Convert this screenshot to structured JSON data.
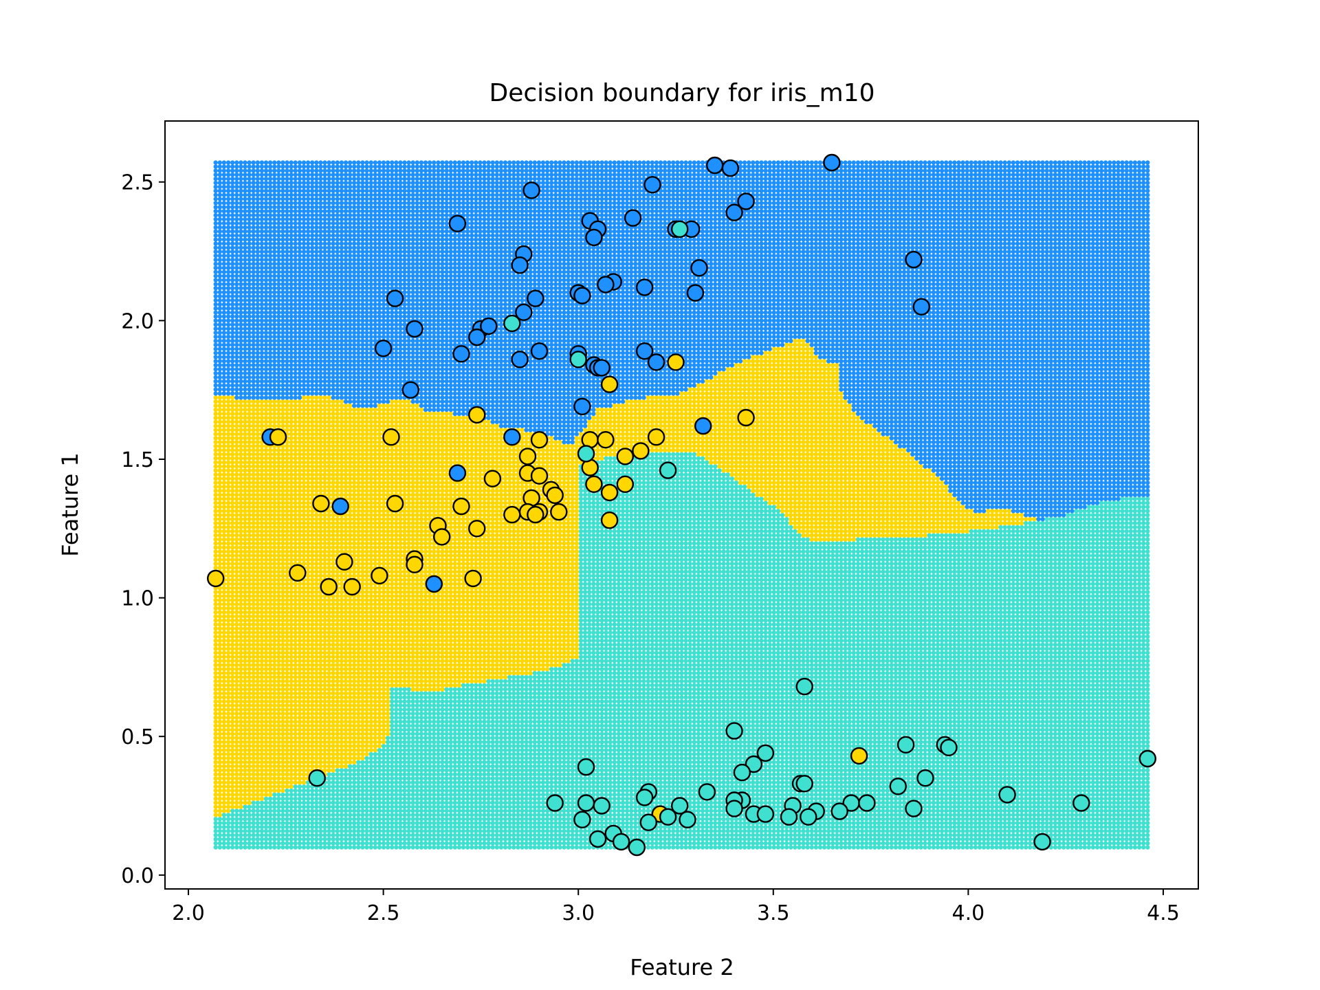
{
  "chart_data": {
    "type": "scatter",
    "title": "Decision boundary for iris_m10",
    "xlabel": "Feature 2",
    "ylabel": "Feature 1",
    "xlim": [
      1.94,
      4.59
    ],
    "ylim": [
      -0.05,
      2.72
    ],
    "xticks": [
      2.0,
      2.5,
      3.0,
      3.5,
      4.0,
      4.5
    ],
    "yticks": [
      0.0,
      0.5,
      1.0,
      1.5,
      2.0,
      2.5
    ],
    "xtick_labels": [
      "2.0",
      "2.5",
      "3.0",
      "3.5",
      "4.0",
      "4.5"
    ],
    "ytick_labels": [
      "0.0",
      "0.5",
      "1.0",
      "1.5",
      "2.0",
      "2.5"
    ],
    "grid": false,
    "legend": "none",
    "class_colors": {
      "blue": "#1e90ff",
      "yellow": "#ffd700",
      "teal": "#40e0d0"
    },
    "decision_region_grid": {
      "x_range": [
        2.07,
        4.46
      ],
      "y_range": [
        0.1,
        2.57
      ]
    },
    "decision_boundaries": {
      "teal_upper_edge": [
        [
          2.07,
          0.21
        ],
        [
          2.2,
          0.28
        ],
        [
          2.35,
          0.36
        ],
        [
          2.45,
          0.42
        ],
        [
          2.51,
          0.48
        ],
        [
          2.52,
          0.68
        ],
        [
          2.62,
          0.66
        ],
        [
          2.72,
          0.69
        ],
        [
          2.85,
          0.72
        ],
        [
          2.95,
          0.75
        ],
        [
          3.05,
          0.83
        ],
        [
          3.15,
          0.88
        ],
        [
          3.3,
          0.93
        ],
        [
          3.4,
          1.0
        ],
        [
          3.45,
          1.08
        ],
        [
          3.5,
          1.14
        ],
        [
          3.56,
          1.18
        ],
        [
          3.6,
          1.2
        ],
        [
          3.7,
          1.21
        ],
        [
          3.82,
          1.22
        ],
        [
          3.95,
          1.23
        ],
        [
          4.05,
          1.25
        ],
        [
          4.15,
          1.27
        ],
        [
          4.25,
          1.3
        ],
        [
          4.35,
          1.35
        ],
        [
          4.46,
          1.37
        ]
      ],
      "teal_wedge_top": [
        [
          3.0,
          1.48
        ],
        [
          3.15,
          1.53
        ],
        [
          3.3,
          1.52
        ],
        [
          3.38,
          1.45
        ],
        [
          3.45,
          1.38
        ],
        [
          3.52,
          1.31
        ],
        [
          3.57,
          1.22
        ],
        [
          3.6,
          1.21
        ]
      ],
      "yellow_upper_edge": [
        [
          2.07,
          1.73
        ],
        [
          2.2,
          1.71
        ],
        [
          2.35,
          1.73
        ],
        [
          2.45,
          1.68
        ],
        [
          2.55,
          1.72
        ],
        [
          2.62,
          1.67
        ],
        [
          2.72,
          1.66
        ],
        [
          2.82,
          1.61
        ],
        [
          2.9,
          1.6
        ],
        [
          2.98,
          1.55
        ],
        [
          3.05,
          1.68
        ],
        [
          3.15,
          1.72
        ],
        [
          3.25,
          1.73
        ],
        [
          3.3,
          1.76
        ],
        [
          3.38,
          1.83
        ],
        [
          3.5,
          1.9
        ],
        [
          3.58,
          1.94
        ],
        [
          3.62,
          1.86
        ],
        [
          3.67,
          1.84
        ],
        [
          3.67,
          1.75
        ],
        [
          3.72,
          1.65
        ],
        [
          3.82,
          1.55
        ],
        [
          3.92,
          1.44
        ],
        [
          3.98,
          1.34
        ],
        [
          4.02,
          1.31
        ],
        [
          4.1,
          1.32
        ],
        [
          4.2,
          1.27
        ],
        [
          4.3,
          1.27
        ],
        [
          4.46,
          1.37
        ]
      ]
    },
    "series": [
      {
        "class": "blue",
        "points": [
          [
            3.65,
            2.57
          ],
          [
            3.35,
            2.56
          ],
          [
            3.39,
            2.55
          ],
          [
            2.88,
            2.47
          ],
          [
            3.19,
            2.49
          ],
          [
            3.43,
            2.43
          ],
          [
            3.4,
            2.39
          ],
          [
            2.69,
            2.35
          ],
          [
            3.03,
            2.36
          ],
          [
            3.14,
            2.37
          ],
          [
            3.05,
            2.33
          ],
          [
            3.25,
            2.33
          ],
          [
            3.29,
            2.33
          ],
          [
            3.04,
            2.3
          ],
          [
            2.86,
            2.24
          ],
          [
            2.85,
            2.2
          ],
          [
            3.31,
            2.19
          ],
          [
            3.86,
            2.22
          ],
          [
            3.09,
            2.14
          ],
          [
            3.07,
            2.13
          ],
          [
            3.17,
            2.12
          ],
          [
            3.0,
            2.1
          ],
          [
            3.01,
            2.09
          ],
          [
            3.3,
            2.1
          ],
          [
            2.53,
            2.08
          ],
          [
            2.89,
            2.08
          ],
          [
            2.86,
            2.03
          ],
          [
            3.88,
            2.05
          ],
          [
            2.58,
            1.97
          ],
          [
            2.75,
            1.97
          ],
          [
            2.77,
            1.98
          ],
          [
            2.74,
            1.94
          ],
          [
            2.5,
            1.9
          ],
          [
            2.7,
            1.88
          ],
          [
            2.9,
            1.89
          ],
          [
            3.17,
            1.89
          ],
          [
            2.85,
            1.86
          ],
          [
            3.0,
            1.88
          ],
          [
            3.04,
            1.84
          ],
          [
            3.05,
            1.83
          ],
          [
            3.06,
            1.83
          ],
          [
            3.2,
            1.85
          ],
          [
            2.57,
            1.75
          ],
          [
            3.01,
            1.69
          ],
          [
            3.32,
            1.62
          ],
          [
            2.21,
            1.58
          ],
          [
            2.83,
            1.58
          ],
          [
            2.69,
            1.45
          ],
          [
            2.39,
            1.33
          ],
          [
            2.63,
            1.05
          ]
        ]
      },
      {
        "class": "yellow",
        "points": [
          [
            3.25,
            1.85
          ],
          [
            3.08,
            1.77
          ],
          [
            2.74,
            1.66
          ],
          [
            3.43,
            1.65
          ],
          [
            2.23,
            1.58
          ],
          [
            2.52,
            1.58
          ],
          [
            2.9,
            1.57
          ],
          [
            3.03,
            1.57
          ],
          [
            3.07,
            1.57
          ],
          [
            3.2,
            1.58
          ],
          [
            3.16,
            1.53
          ],
          [
            2.87,
            1.51
          ],
          [
            3.12,
            1.51
          ],
          [
            3.03,
            1.47
          ],
          [
            2.87,
            1.45
          ],
          [
            2.9,
            1.44
          ],
          [
            2.78,
            1.43
          ],
          [
            3.04,
            1.41
          ],
          [
            3.12,
            1.41
          ],
          [
            2.93,
            1.39
          ],
          [
            3.08,
            1.38
          ],
          [
            2.94,
            1.37
          ],
          [
            2.88,
            1.36
          ],
          [
            2.34,
            1.34
          ],
          [
            2.53,
            1.34
          ],
          [
            2.7,
            1.33
          ],
          [
            2.87,
            1.31
          ],
          [
            2.83,
            1.3
          ],
          [
            2.9,
            1.31
          ],
          [
            2.95,
            1.31
          ],
          [
            2.89,
            1.3
          ],
          [
            3.08,
            1.28
          ],
          [
            2.64,
            1.26
          ],
          [
            2.74,
            1.25
          ],
          [
            2.65,
            1.22
          ],
          [
            2.58,
            1.14
          ],
          [
            2.58,
            1.12
          ],
          [
            2.4,
            1.13
          ],
          [
            2.28,
            1.09
          ],
          [
            2.49,
            1.08
          ],
          [
            2.73,
            1.07
          ],
          [
            2.07,
            1.07
          ],
          [
            2.36,
            1.04
          ],
          [
            2.42,
            1.04
          ],
          [
            3.72,
            0.43
          ],
          [
            3.21,
            0.22
          ]
        ]
      },
      {
        "class": "teal",
        "points": [
          [
            2.83,
            1.99
          ],
          [
            3.0,
            1.86
          ],
          [
            3.26,
            2.33
          ],
          [
            3.02,
            1.52
          ],
          [
            3.23,
            1.46
          ],
          [
            3.58,
            0.68
          ],
          [
            3.4,
            0.52
          ],
          [
            3.84,
            0.47
          ],
          [
            3.94,
            0.47
          ],
          [
            3.95,
            0.46
          ],
          [
            3.48,
            0.44
          ],
          [
            4.46,
            0.42
          ],
          [
            3.45,
            0.4
          ],
          [
            3.02,
            0.39
          ],
          [
            3.42,
            0.37
          ],
          [
            2.33,
            0.35
          ],
          [
            3.89,
            0.35
          ],
          [
            3.57,
            0.33
          ],
          [
            3.58,
            0.33
          ],
          [
            3.82,
            0.32
          ],
          [
            3.33,
            0.3
          ],
          [
            3.18,
            0.3
          ],
          [
            3.17,
            0.28
          ],
          [
            4.1,
            0.29
          ],
          [
            3.42,
            0.27
          ],
          [
            3.4,
            0.27
          ],
          [
            2.94,
            0.26
          ],
          [
            3.02,
            0.26
          ],
          [
            3.7,
            0.26
          ],
          [
            3.74,
            0.26
          ],
          [
            4.29,
            0.26
          ],
          [
            3.55,
            0.25
          ],
          [
            3.26,
            0.25
          ],
          [
            3.06,
            0.25
          ],
          [
            3.4,
            0.24
          ],
          [
            3.86,
            0.24
          ],
          [
            3.61,
            0.23
          ],
          [
            3.67,
            0.23
          ],
          [
            3.45,
            0.22
          ],
          [
            3.48,
            0.22
          ],
          [
            3.54,
            0.21
          ],
          [
            3.59,
            0.21
          ],
          [
            3.23,
            0.21
          ],
          [
            3.28,
            0.2
          ],
          [
            3.01,
            0.2
          ],
          [
            3.18,
            0.19
          ],
          [
            3.09,
            0.15
          ],
          [
            3.05,
            0.13
          ],
          [
            3.11,
            0.12
          ],
          [
            4.19,
            0.12
          ],
          [
            3.15,
            0.1
          ]
        ]
      }
    ]
  }
}
